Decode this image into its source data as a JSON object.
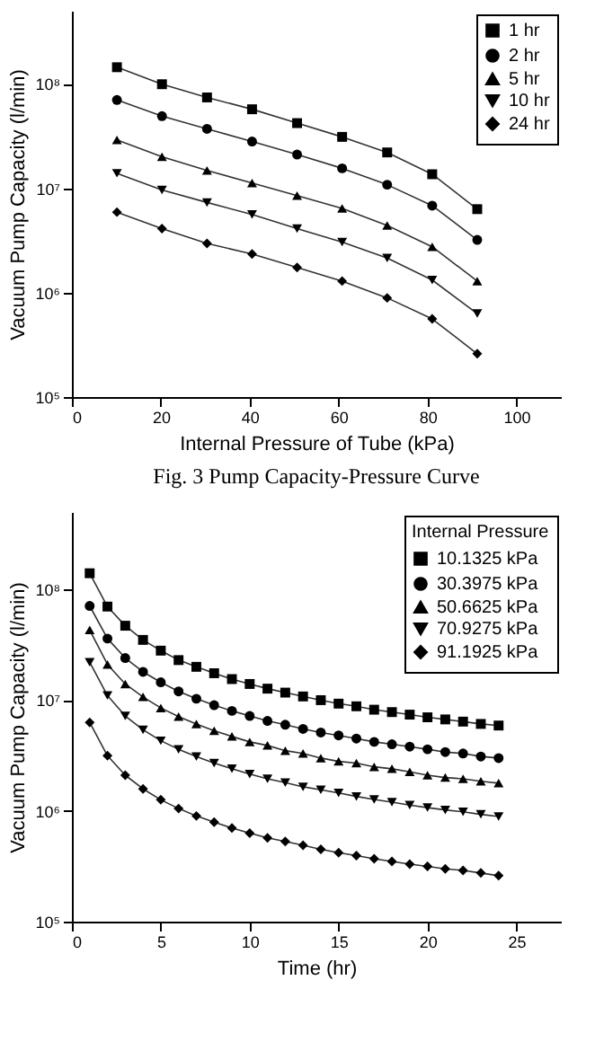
{
  "chart_data": [
    {
      "type": "line",
      "xlabel": "Internal Pressure of Tube (kPa)",
      "ylabel": "Vacuum Pump Capacity (l/min)",
      "annotations": [
        "Fig. 3 Pump Capacity-Pressure Curve"
      ],
      "log": "y",
      "grid": false,
      "legend": "top right",
      "x": [
        10.1325,
        20.265,
        30.3975,
        40.53,
        50.6625,
        60.795,
        70.9275,
        81.06,
        91.1925
      ],
      "xlim": [
        0,
        110
      ],
      "xticks": [
        0,
        20,
        40,
        60,
        80,
        100
      ],
      "ylim": [
        100000,
        500000000
      ],
      "yticks": [
        {
          "value": 100000,
          "label": "10⁵"
        },
        {
          "value": 1000000,
          "label": "10⁶"
        },
        {
          "value": 10000000,
          "label": "10⁷"
        },
        {
          "value": 100000000,
          "label": "10⁸"
        }
      ],
      "series": [
        {
          "name": "1 hr",
          "color": "#000000",
          "marker": "square",
          "values": [
            144000000,
            99000000,
            74000000,
            57000000,
            42000000,
            31000000,
            22000000,
            13600000,
            6300000
          ]
        },
        {
          "name": "2 hr",
          "color": "#000000",
          "marker": "circle",
          "values": [
            70000000,
            49000000,
            37000000,
            28000000,
            21000000,
            15500000,
            10800000,
            6800000,
            3200000
          ]
        },
        {
          "name": "5 hr",
          "color": "#000000",
          "marker": "triangle",
          "values": [
            29000000,
            20000000,
            14800000,
            11200000,
            8500000,
            6400000,
            4400000,
            2750000,
            1290000
          ]
        },
        {
          "name": "10 hr",
          "color": "#000000",
          "marker": "triangle-down",
          "values": [
            13900000,
            9600000,
            7300000,
            5600000,
            4100000,
            3050000,
            2140000,
            1320000,
            630000
          ]
        },
        {
          "name": "24 hr",
          "color": "#000000",
          "marker": "diamond",
          "values": [
            5900000,
            4100000,
            2960000,
            2340000,
            1740000,
            1290000,
            890000,
            560000,
            260000
          ]
        }
      ]
    },
    {
      "type": "line",
      "xlabel": "Time (hr)",
      "ylabel": "Vacuum Pump Capacity (l/min)",
      "legend_title": "Internal Pressure",
      "log": "y",
      "grid": false,
      "legend": "top right",
      "x": [
        1,
        2,
        3,
        4,
        5,
        6,
        7,
        8,
        9,
        10,
        11,
        12,
        13,
        14,
        15,
        16,
        17,
        18,
        19,
        20,
        21,
        22,
        23,
        24
      ],
      "xlim": [
        0,
        27.5
      ],
      "xticks": [
        0,
        5,
        10,
        15,
        20,
        25
      ],
      "ylim": [
        100000,
        500000000
      ],
      "yticks": [
        {
          "value": 100000,
          "label": "10⁵"
        },
        {
          "value": 1000000,
          "label": "10⁶"
        },
        {
          "value": 10000000,
          "label": "10⁷"
        },
        {
          "value": 100000000,
          "label": "10⁸"
        }
      ],
      "series": [
        {
          "name": "10.1325 kPa",
          "color": "#000000",
          "marker": "square",
          "values": [
            140000000,
            70000000,
            47000000,
            35000000,
            28000000,
            23000000,
            20000000,
            17500000,
            15500000,
            14000000,
            12700000,
            11700000,
            10800000,
            10000000,
            9300000,
            8800000,
            8200000,
            7800000,
            7400000,
            7000000,
            6700000,
            6400000,
            6100000,
            5900000
          ]
        },
        {
          "name": "30.3975 kPa",
          "color": "#000000",
          "marker": "circle",
          "values": [
            71000000,
            36000000,
            24000000,
            18000000,
            14500000,
            12000000,
            10300000,
            9000000,
            8000000,
            7200000,
            6500000,
            6000000,
            5500000,
            5100000,
            4800000,
            4500000,
            4200000,
            4000000,
            3800000,
            3600000,
            3400000,
            3300000,
            3100000,
            3000000
          ]
        },
        {
          "name": "50.6625 kPa",
          "color": "#000000",
          "marker": "triangle",
          "values": [
            43000000,
            21000000,
            14000000,
            10700000,
            8500000,
            7100000,
            6100000,
            5300000,
            4700000,
            4200000,
            3900000,
            3500000,
            3300000,
            3000000,
            2800000,
            2700000,
            2500000,
            2400000,
            2250000,
            2100000,
            2000000,
            1950000,
            1850000,
            1780000
          ]
        },
        {
          "name": "70.9275 kPa",
          "color": "#000000",
          "marker": "triangle-down",
          "values": [
            22000000,
            11000000,
            7200000,
            5400000,
            4300000,
            3600000,
            3100000,
            2700000,
            2400000,
            2150000,
            1950000,
            1800000,
            1650000,
            1550000,
            1450000,
            1350000,
            1270000,
            1200000,
            1130000,
            1070000,
            1020000,
            980000,
            930000,
            890000
          ]
        },
        {
          "name": "91.1925 kPa",
          "color": "#000000",
          "marker": "diamond",
          "values": [
            6300000,
            3150000,
            2100000,
            1580000,
            1260000,
            1050000,
            900000,
            790000,
            700000,
            630000,
            570000,
            530000,
            490000,
            450000,
            420000,
            395000,
            370000,
            350000,
            330000,
            315000,
            300000,
            290000,
            275000,
            260000
          ]
        }
      ]
    }
  ]
}
